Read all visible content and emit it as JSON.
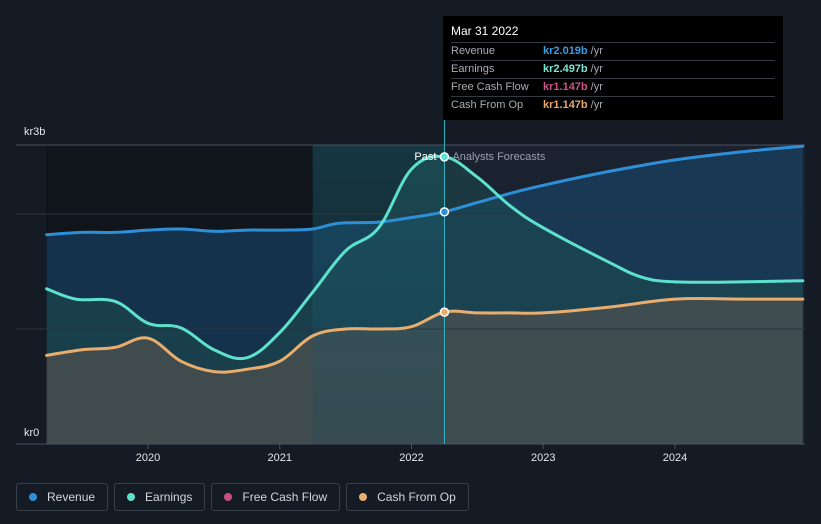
{
  "tooltip": {
    "date": "Mar 31 2022",
    "rows": [
      {
        "label": "Revenue",
        "value": "kr2.019b",
        "unit": "/yr",
        "color": "#3d9be0"
      },
      {
        "label": "Earnings",
        "value": "kr2.497b",
        "unit": "/yr",
        "color": "#7ae6d2"
      },
      {
        "label": "Free Cash Flow",
        "value": "kr1.147b",
        "unit": "/yr",
        "color": "#d0528a"
      },
      {
        "label": "Cash From Op",
        "value": "kr1.147b",
        "unit": "/yr",
        "color": "#e6a96c"
      }
    ]
  },
  "legend": [
    {
      "label": "Revenue",
      "color": "#2e8fd9"
    },
    {
      "label": "Earnings",
      "color": "#5ee1cc"
    },
    {
      "label": "Free Cash Flow",
      "color": "#c94d87"
    },
    {
      "label": "Cash From Op",
      "color": "#e9ad6e"
    }
  ],
  "chart_data": {
    "type": "area",
    "unit": "kr (billions)",
    "ylim": [
      0,
      2.6
    ],
    "ytick_labels": [
      {
        "value": 2.6,
        "label": "kr3b"
      },
      {
        "value": 0,
        "label": "kr0"
      }
    ],
    "xlim": [
      2019.2,
      2024.98
    ],
    "xticks": [
      2020,
      2021,
      2022,
      2023,
      2024
    ],
    "xtick_labels": [
      "2020",
      "2021",
      "2022",
      "2023",
      "2024"
    ],
    "past_label": "Past",
    "forecast_label": "Analysts Forecasts",
    "divider_x": 2022.25,
    "highlight_start_x": 2021.25,
    "series": [
      {
        "name": "Revenue",
        "color": "#2e8fd9",
        "marker_value": 2.019,
        "points": [
          [
            2019.23,
            1.82
          ],
          [
            2019.5,
            1.84
          ],
          [
            2019.75,
            1.84
          ],
          [
            2020.0,
            1.86
          ],
          [
            2020.25,
            1.87
          ],
          [
            2020.5,
            1.85
          ],
          [
            2020.75,
            1.86
          ],
          [
            2021.0,
            1.86
          ],
          [
            2021.25,
            1.87
          ],
          [
            2021.45,
            1.92
          ],
          [
            2021.75,
            1.93
          ],
          [
            2022.0,
            1.97
          ],
          [
            2022.25,
            2.019
          ],
          [
            2022.5,
            2.1
          ],
          [
            2022.75,
            2.18
          ],
          [
            2023.0,
            2.25
          ],
          [
            2023.5,
            2.37
          ],
          [
            2024.0,
            2.47
          ],
          [
            2024.5,
            2.54
          ],
          [
            2024.97,
            2.59
          ]
        ]
      },
      {
        "name": "Earnings",
        "color": "#5ee1cc",
        "marker_value": 2.497,
        "points": [
          [
            2019.23,
            1.35
          ],
          [
            2019.45,
            1.26
          ],
          [
            2019.75,
            1.24
          ],
          [
            2020.0,
            1.05
          ],
          [
            2020.25,
            1.01
          ],
          [
            2020.5,
            0.82
          ],
          [
            2020.75,
            0.75
          ],
          [
            2021.0,
            0.97
          ],
          [
            2021.25,
            1.32
          ],
          [
            2021.5,
            1.68
          ],
          [
            2021.75,
            1.88
          ],
          [
            2022.0,
            2.39
          ],
          [
            2022.25,
            2.497
          ],
          [
            2022.5,
            2.32
          ],
          [
            2022.75,
            2.07
          ],
          [
            2023.0,
            1.88
          ],
          [
            2023.5,
            1.58
          ],
          [
            2023.75,
            1.45
          ],
          [
            2024.0,
            1.41
          ],
          [
            2024.5,
            1.41
          ],
          [
            2024.97,
            1.42
          ]
        ]
      },
      {
        "name": "Cash From Op",
        "color": "#e9ad6e",
        "marker_value": 1.147,
        "points": [
          [
            2019.23,
            0.77
          ],
          [
            2019.5,
            0.82
          ],
          [
            2019.75,
            0.84
          ],
          [
            2020.0,
            0.92
          ],
          [
            2020.25,
            0.72
          ],
          [
            2020.5,
            0.63
          ],
          [
            2020.75,
            0.65
          ],
          [
            2021.0,
            0.72
          ],
          [
            2021.25,
            0.94
          ],
          [
            2021.5,
            1.0
          ],
          [
            2021.75,
            1.0
          ],
          [
            2022.0,
            1.02
          ],
          [
            2022.25,
            1.147
          ],
          [
            2022.5,
            1.14
          ],
          [
            2022.75,
            1.14
          ],
          [
            2023.0,
            1.14
          ],
          [
            2023.5,
            1.19
          ],
          [
            2024.0,
            1.26
          ],
          [
            2024.5,
            1.26
          ],
          [
            2024.97,
            1.26
          ]
        ]
      },
      {
        "name": "Free Cash Flow",
        "color": "#c94d87",
        "marker_value": 1.147,
        "points": []
      }
    ]
  }
}
